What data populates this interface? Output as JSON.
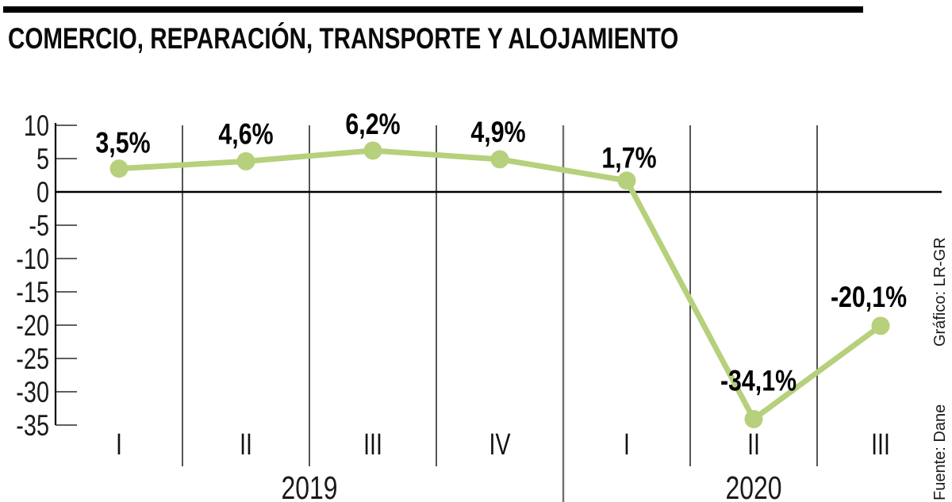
{
  "header": {
    "top_bar_color": "#000000",
    "title": "COMERCIO, REPARACIÓN, TRANSPORTE Y ALOJAMIENTO"
  },
  "credits": {
    "source": "Fuente: Dane",
    "graphic": "Gráfico: LR-GR"
  },
  "chart_data": {
    "type": "line",
    "title": "COMERCIO, REPARACIÓN, TRANSPORTE Y ALOJAMIENTO",
    "categories": [
      "I",
      "II",
      "III",
      "IV",
      "I",
      "II",
      "III"
    ],
    "year_groups": [
      {
        "label": "2019",
        "quarters": 4
      },
      {
        "label": "2020",
        "quarters": 3
      }
    ],
    "values": [
      3.5,
      4.6,
      6.2,
      4.9,
      1.7,
      -34.1,
      -20.1
    ],
    "data_labels": [
      "3,5%",
      "4,6%",
      "6,2%",
      "4,9%",
      "1,7%",
      "-34,1%",
      "-20,1%"
    ],
    "yticks": [
      10,
      5,
      0,
      -5,
      -10,
      -15,
      -20,
      -25,
      -30,
      -35
    ],
    "ylim": [
      -35,
      10
    ],
    "xlabel": "",
    "ylabel": "",
    "grid": true,
    "legend": false,
    "line_color": "#b6d07c",
    "marker_color": "#b6d07c"
  }
}
